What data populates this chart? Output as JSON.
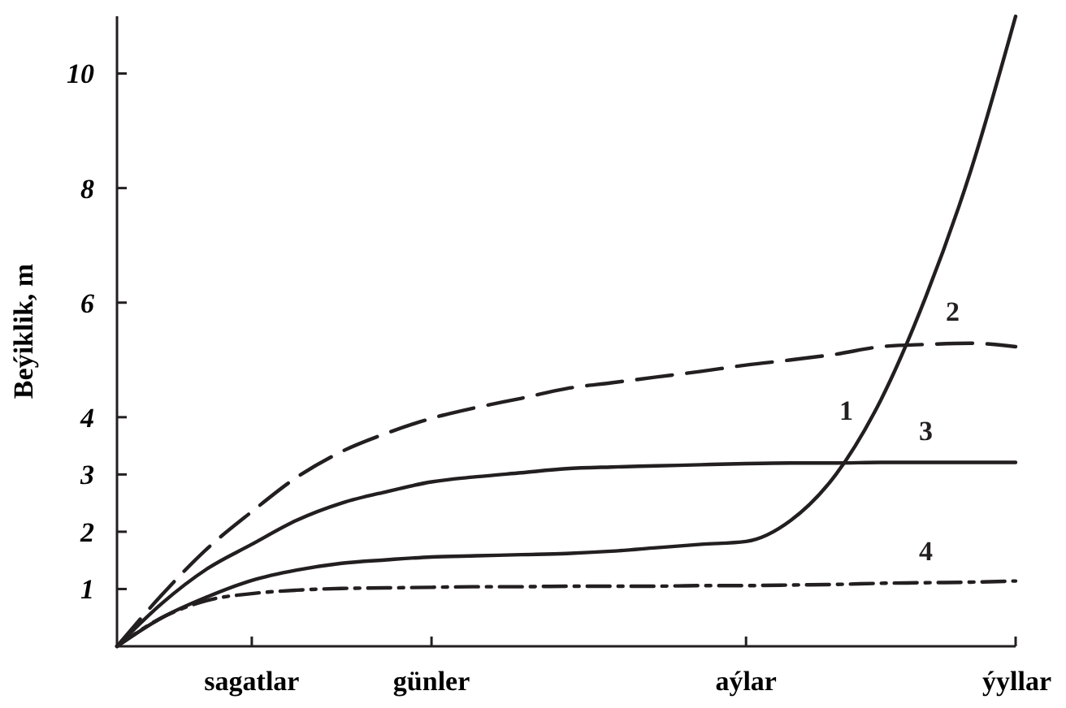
{
  "chart_data": {
    "type": "line",
    "ylabel": "Beýiklik, m",
    "ylim": [
      0,
      11
    ],
    "categories": [
      null,
      null,
      null,
      "sagatlar",
      null,
      null,
      null,
      "günler",
      null,
      null,
      null,
      null,
      null,
      null,
      "aýlar",
      null,
      null,
      null,
      null,
      null,
      "ýyllar"
    ],
    "yticks": [
      1,
      2,
      3,
      4,
      6,
      8,
      10
    ],
    "grid": false,
    "legend": false,
    "marker": "none",
    "series": [
      {
        "name": "1",
        "color": "#231f20",
        "line_style": "solid",
        "values": [
          0,
          0.5,
          0.86,
          1.15,
          1.33,
          1.45,
          1.51,
          1.56,
          1.58,
          1.6,
          1.62,
          1.66,
          1.72,
          1.78,
          1.83,
          2.2,
          3.0,
          4.3,
          6.1,
          8.3,
          11
        ]
      },
      {
        "name": "2",
        "color": "#231f20",
        "line_style": "dashed",
        "values": [
          0,
          0.9,
          1.7,
          2.35,
          2.95,
          3.4,
          3.72,
          3.98,
          4.17,
          4.33,
          4.5,
          4.6,
          4.7,
          4.8,
          4.91,
          5.0,
          5.1,
          5.23,
          5.27,
          5.29,
          5.23
        ]
      },
      {
        "name": "3",
        "color": "#231f20",
        "line_style": "solid",
        "values": [
          0,
          0.75,
          1.35,
          1.78,
          2.2,
          2.5,
          2.7,
          2.87,
          2.96,
          3.03,
          3.1,
          3.13,
          3.15,
          3.17,
          3.19,
          3.2,
          3.2,
          3.21,
          3.21,
          3.21,
          3.21
        ]
      },
      {
        "name": "4",
        "color": "#231f20",
        "line_style": "dashdot",
        "values": [
          0,
          0.5,
          0.8,
          0.92,
          0.98,
          1.01,
          1.02,
          1.03,
          1.04,
          1.04,
          1.05,
          1.05,
          1.05,
          1.06,
          1.06,
          1.07,
          1.08,
          1.1,
          1.11,
          1.12,
          1.14
        ]
      }
    ]
  }
}
